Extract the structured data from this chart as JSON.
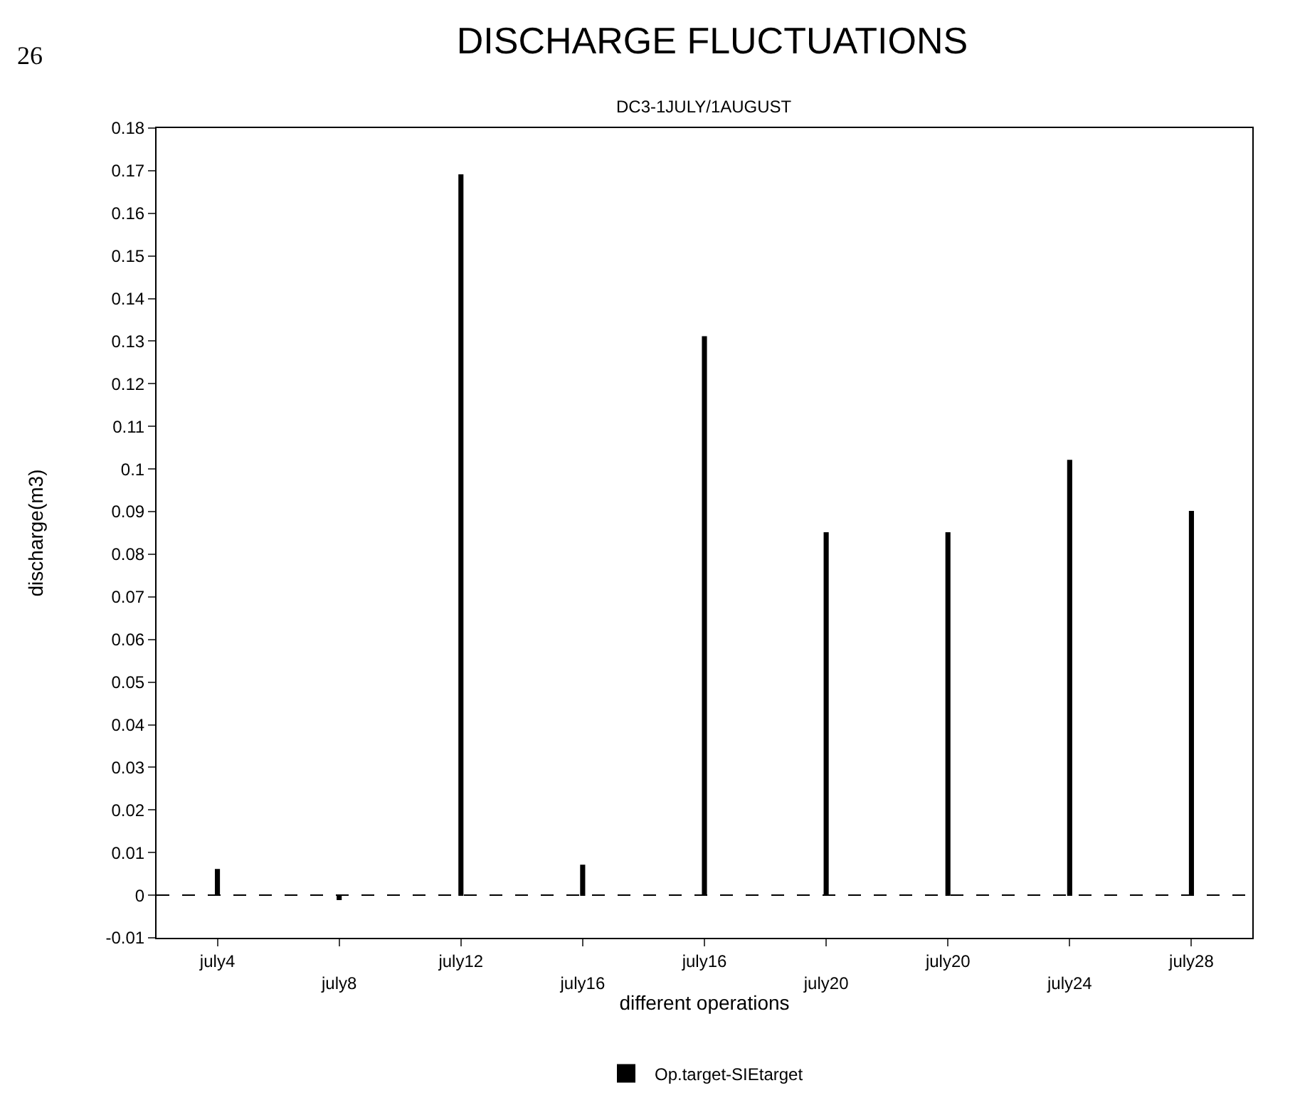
{
  "chart_data": {
    "type": "bar",
    "title": "DISCHARGE FLUCTUATIONS",
    "subtitle": "DC3-1JULY/1AUGUST",
    "xlabel": "different operations",
    "ylabel": "discharge(m3)",
    "categories": [
      "july4",
      "july8",
      "july12",
      "july16",
      "july16",
      "july20",
      "july20",
      "july24",
      "july28"
    ],
    "series": [
      {
        "name": "Op.target-SIEtarget",
        "color": "#000000",
        "values": [
          0.006,
          -0.001,
          0.169,
          0.007,
          0.131,
          0.085,
          0.085,
          0.102,
          0.09
        ]
      }
    ],
    "ylim": [
      -0.01,
      0.18
    ],
    "yticks": [
      -0.01,
      0,
      0.01,
      0.02,
      0.03,
      0.04,
      0.05,
      0.06,
      0.07,
      0.08,
      0.09,
      0.1,
      0.11,
      0.12,
      0.13,
      0.14,
      0.15,
      0.16,
      0.17,
      0.18
    ],
    "ref_lines": [
      {
        "axis": "y",
        "value": 0,
        "line_style": "dashed",
        "color": "#000000"
      }
    ],
    "legend": "bottom",
    "annotations": [
      "26"
    ]
  }
}
